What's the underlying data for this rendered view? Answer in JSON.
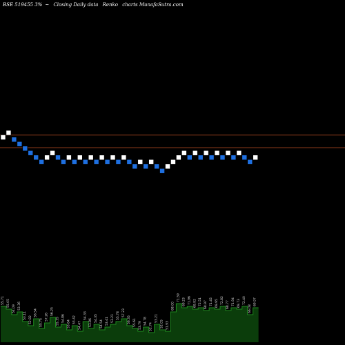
{
  "header": {
    "symbol": "BSE 519455 3%",
    "suffix": "~",
    "description": "Closing Daily data",
    "chart_name": "Renko",
    "watermark": "charts MunafaSutra.com"
  },
  "colors": {
    "background": "#000000",
    "up_brick": "#ffffff",
    "down_brick": "#1e6fe0",
    "level_line": "#8b3a1a",
    "volume_fill": "#0b3d0b",
    "volume_line": "#1f8a1f",
    "label": "#dddddd"
  },
  "chart_data": {
    "type": "renko",
    "price_range": [
      10,
      72
    ],
    "levels": [
      19,
      13.4
    ],
    "bricks": [
      {
        "dir": "up",
        "price": 18
      },
      {
        "dir": "up",
        "price": 20
      },
      {
        "dir": "down",
        "price": 17
      },
      {
        "dir": "down",
        "price": 15
      },
      {
        "dir": "down",
        "price": 13
      },
      {
        "dir": "down",
        "price": 11
      },
      {
        "dir": "down",
        "price": 9
      },
      {
        "dir": "down",
        "price": 7
      },
      {
        "dir": "up",
        "price": 9
      },
      {
        "dir": "up",
        "price": 11
      },
      {
        "dir": "down",
        "price": 9
      },
      {
        "dir": "down",
        "price": 7
      },
      {
        "dir": "up",
        "price": 9
      },
      {
        "dir": "down",
        "price": 7
      },
      {
        "dir": "up",
        "price": 9
      },
      {
        "dir": "down",
        "price": 7
      },
      {
        "dir": "up",
        "price": 9
      },
      {
        "dir": "down",
        "price": 7
      },
      {
        "dir": "up",
        "price": 9
      },
      {
        "dir": "down",
        "price": 7
      },
      {
        "dir": "up",
        "price": 9
      },
      {
        "dir": "down",
        "price": 7
      },
      {
        "dir": "up",
        "price": 9
      },
      {
        "dir": "down",
        "price": 7
      },
      {
        "dir": "down",
        "price": 5
      },
      {
        "dir": "up",
        "price": 7
      },
      {
        "dir": "down",
        "price": 5
      },
      {
        "dir": "up",
        "price": 7
      },
      {
        "dir": "down",
        "price": 5
      },
      {
        "dir": "down",
        "price": 3
      },
      {
        "dir": "up",
        "price": 5
      },
      {
        "dir": "up",
        "price": 7
      },
      {
        "dir": "up",
        "price": 9
      },
      {
        "dir": "up",
        "price": 11
      },
      {
        "dir": "down",
        "price": 9
      },
      {
        "dir": "up",
        "price": 11
      },
      {
        "dir": "down",
        "price": 9
      },
      {
        "dir": "up",
        "price": 11
      },
      {
        "dir": "down",
        "price": 9
      },
      {
        "dir": "up",
        "price": 11
      },
      {
        "dir": "down",
        "price": 9
      },
      {
        "dir": "up",
        "price": 11
      },
      {
        "dir": "down",
        "price": 9
      },
      {
        "dir": "up",
        "price": 11
      },
      {
        "dir": "down",
        "price": 9
      },
      {
        "dir": "down",
        "price": 7
      },
      {
        "dir": "up",
        "price": 9
      }
    ],
    "volume": [
      {
        "value": 52,
        "label": "55.71"
      },
      {
        "value": 48,
        "label": "55.05"
      },
      {
        "value": 40,
        "label": "54.09"
      },
      {
        "value": 44,
        "label": "53.36"
      },
      {
        "value": 30,
        "label": "53.11"
      },
      {
        "value": 24,
        "label": "52.82"
      },
      {
        "value": 34,
        "label": "56.54"
      },
      {
        "value": 20,
        "label": "55.75"
      },
      {
        "value": 28,
        "label": "57.26"
      },
      {
        "value": 36,
        "label": "56.25"
      },
      {
        "value": 22,
        "label": "55.35"
      },
      {
        "value": 26,
        "label": "54.86"
      },
      {
        "value": 18,
        "label": "53.64"
      },
      {
        "value": 24,
        "label": "53.42"
      },
      {
        "value": 16,
        "label": "54.47"
      },
      {
        "value": 30,
        "label": "54.33"
      },
      {
        "value": 20,
        "label": "53.86"
      },
      {
        "value": 26,
        "label": "54.35"
      },
      {
        "value": 18,
        "label": "54.54"
      },
      {
        "value": 22,
        "label": "53.41"
      },
      {
        "value": 26,
        "label": "53.21"
      },
      {
        "value": 30,
        "label": "55.78"
      },
      {
        "value": 34,
        "label": "57.23"
      },
      {
        "value": 24,
        "label": "56.35"
      },
      {
        "value": 20,
        "label": "55.61"
      },
      {
        "value": 16,
        "label": "53.79"
      },
      {
        "value": 22,
        "label": "54.78"
      },
      {
        "value": 14,
        "label": "52.74"
      },
      {
        "value": 26,
        "label": "53.21"
      },
      {
        "value": 18,
        "label": "52.05"
      },
      {
        "value": 16,
        "label": "51.93"
      },
      {
        "value": 44,
        "label": "68.00"
      },
      {
        "value": 56,
        "label": "71.59"
      },
      {
        "value": 50,
        "label": "69.23"
      },
      {
        "value": 52,
        "label": "71.96"
      },
      {
        "value": 48,
        "label": "69.92"
      },
      {
        "value": 50,
        "label": "72.51"
      },
      {
        "value": 46,
        "label": "68.97"
      },
      {
        "value": 50,
        "label": "71.45"
      },
      {
        "value": 48,
        "label": "69.95"
      },
      {
        "value": 52,
        "label": "72.82"
      },
      {
        "value": 46,
        "label": "68.77"
      },
      {
        "value": 50,
        "label": "71.94"
      },
      {
        "value": 48,
        "label": "69.73"
      },
      {
        "value": 52,
        "label": "72.40"
      },
      {
        "value": 40,
        "label": "66.08"
      },
      {
        "value": 50,
        "label": "69.97"
      }
    ]
  }
}
